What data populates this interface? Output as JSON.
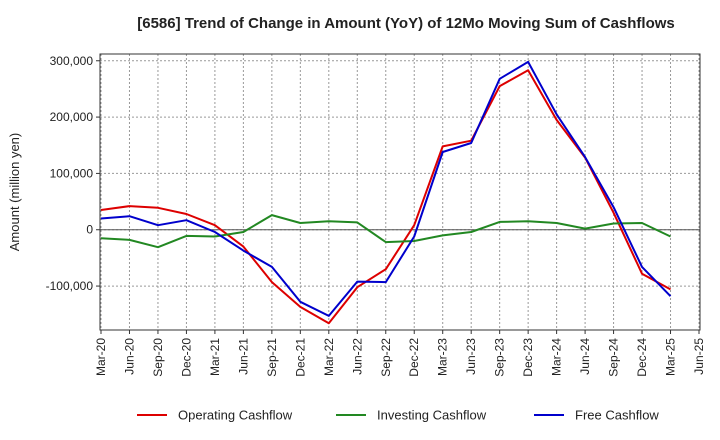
{
  "chart_data": {
    "type": "line",
    "title": "[6586]  Trend of Change in Amount (YoY) of 12Mo Moving Sum of Cashflows",
    "xlabel": "",
    "ylabel": "Amount (million yen)",
    "ylim": [
      -178000,
      312000
    ],
    "yticks": [
      300000,
      200000,
      100000,
      0,
      -100000
    ],
    "ytick_labels": [
      "300,000",
      "200,000",
      "100,000",
      "0",
      "-100,000"
    ],
    "categories": [
      "Mar-20",
      "Jun-20",
      "Sep-20",
      "Dec-20",
      "Mar-21",
      "Jun-21",
      "Sep-21",
      "Dec-21",
      "Mar-22",
      "Jun-22",
      "Sep-22",
      "Dec-22",
      "Mar-23",
      "Jun-23",
      "Sep-23",
      "Dec-23",
      "Mar-24",
      "Jun-24",
      "Sep-24",
      "Dec-24",
      "Mar-25",
      "Jun-25"
    ],
    "series": [
      {
        "name": "Operating Cashflow",
        "color": "#dd0000",
        "values": [
          35000,
          42000,
          39000,
          28000,
          8000,
          -30000,
          -93000,
          -137000,
          -166000,
          -102000,
          -70000,
          8000,
          148000,
          158000,
          255000,
          283000,
          195000,
          128000,
          30000,
          -78000,
          -106000,
          null
        ]
      },
      {
        "name": "Investing Cashflow",
        "color": "#228822",
        "values": [
          -15000,
          -18000,
          -31000,
          -11000,
          -12000,
          -4000,
          26000,
          12000,
          15000,
          13000,
          -22000,
          -20000,
          -10000,
          -4000,
          14000,
          15000,
          12000,
          2000,
          11000,
          12000,
          -12000,
          null
        ]
      },
      {
        "name": "Free Cashflow",
        "color": "#0000cc",
        "values": [
          20000,
          24000,
          8000,
          17000,
          -4000,
          -37000,
          -66000,
          -128000,
          -153000,
          -92000,
          -93000,
          -12000,
          138000,
          154000,
          268000,
          298000,
          205000,
          129000,
          40000,
          -66000,
          -118000,
          null
        ]
      }
    ],
    "legend_position": "bottom",
    "grid": true
  }
}
